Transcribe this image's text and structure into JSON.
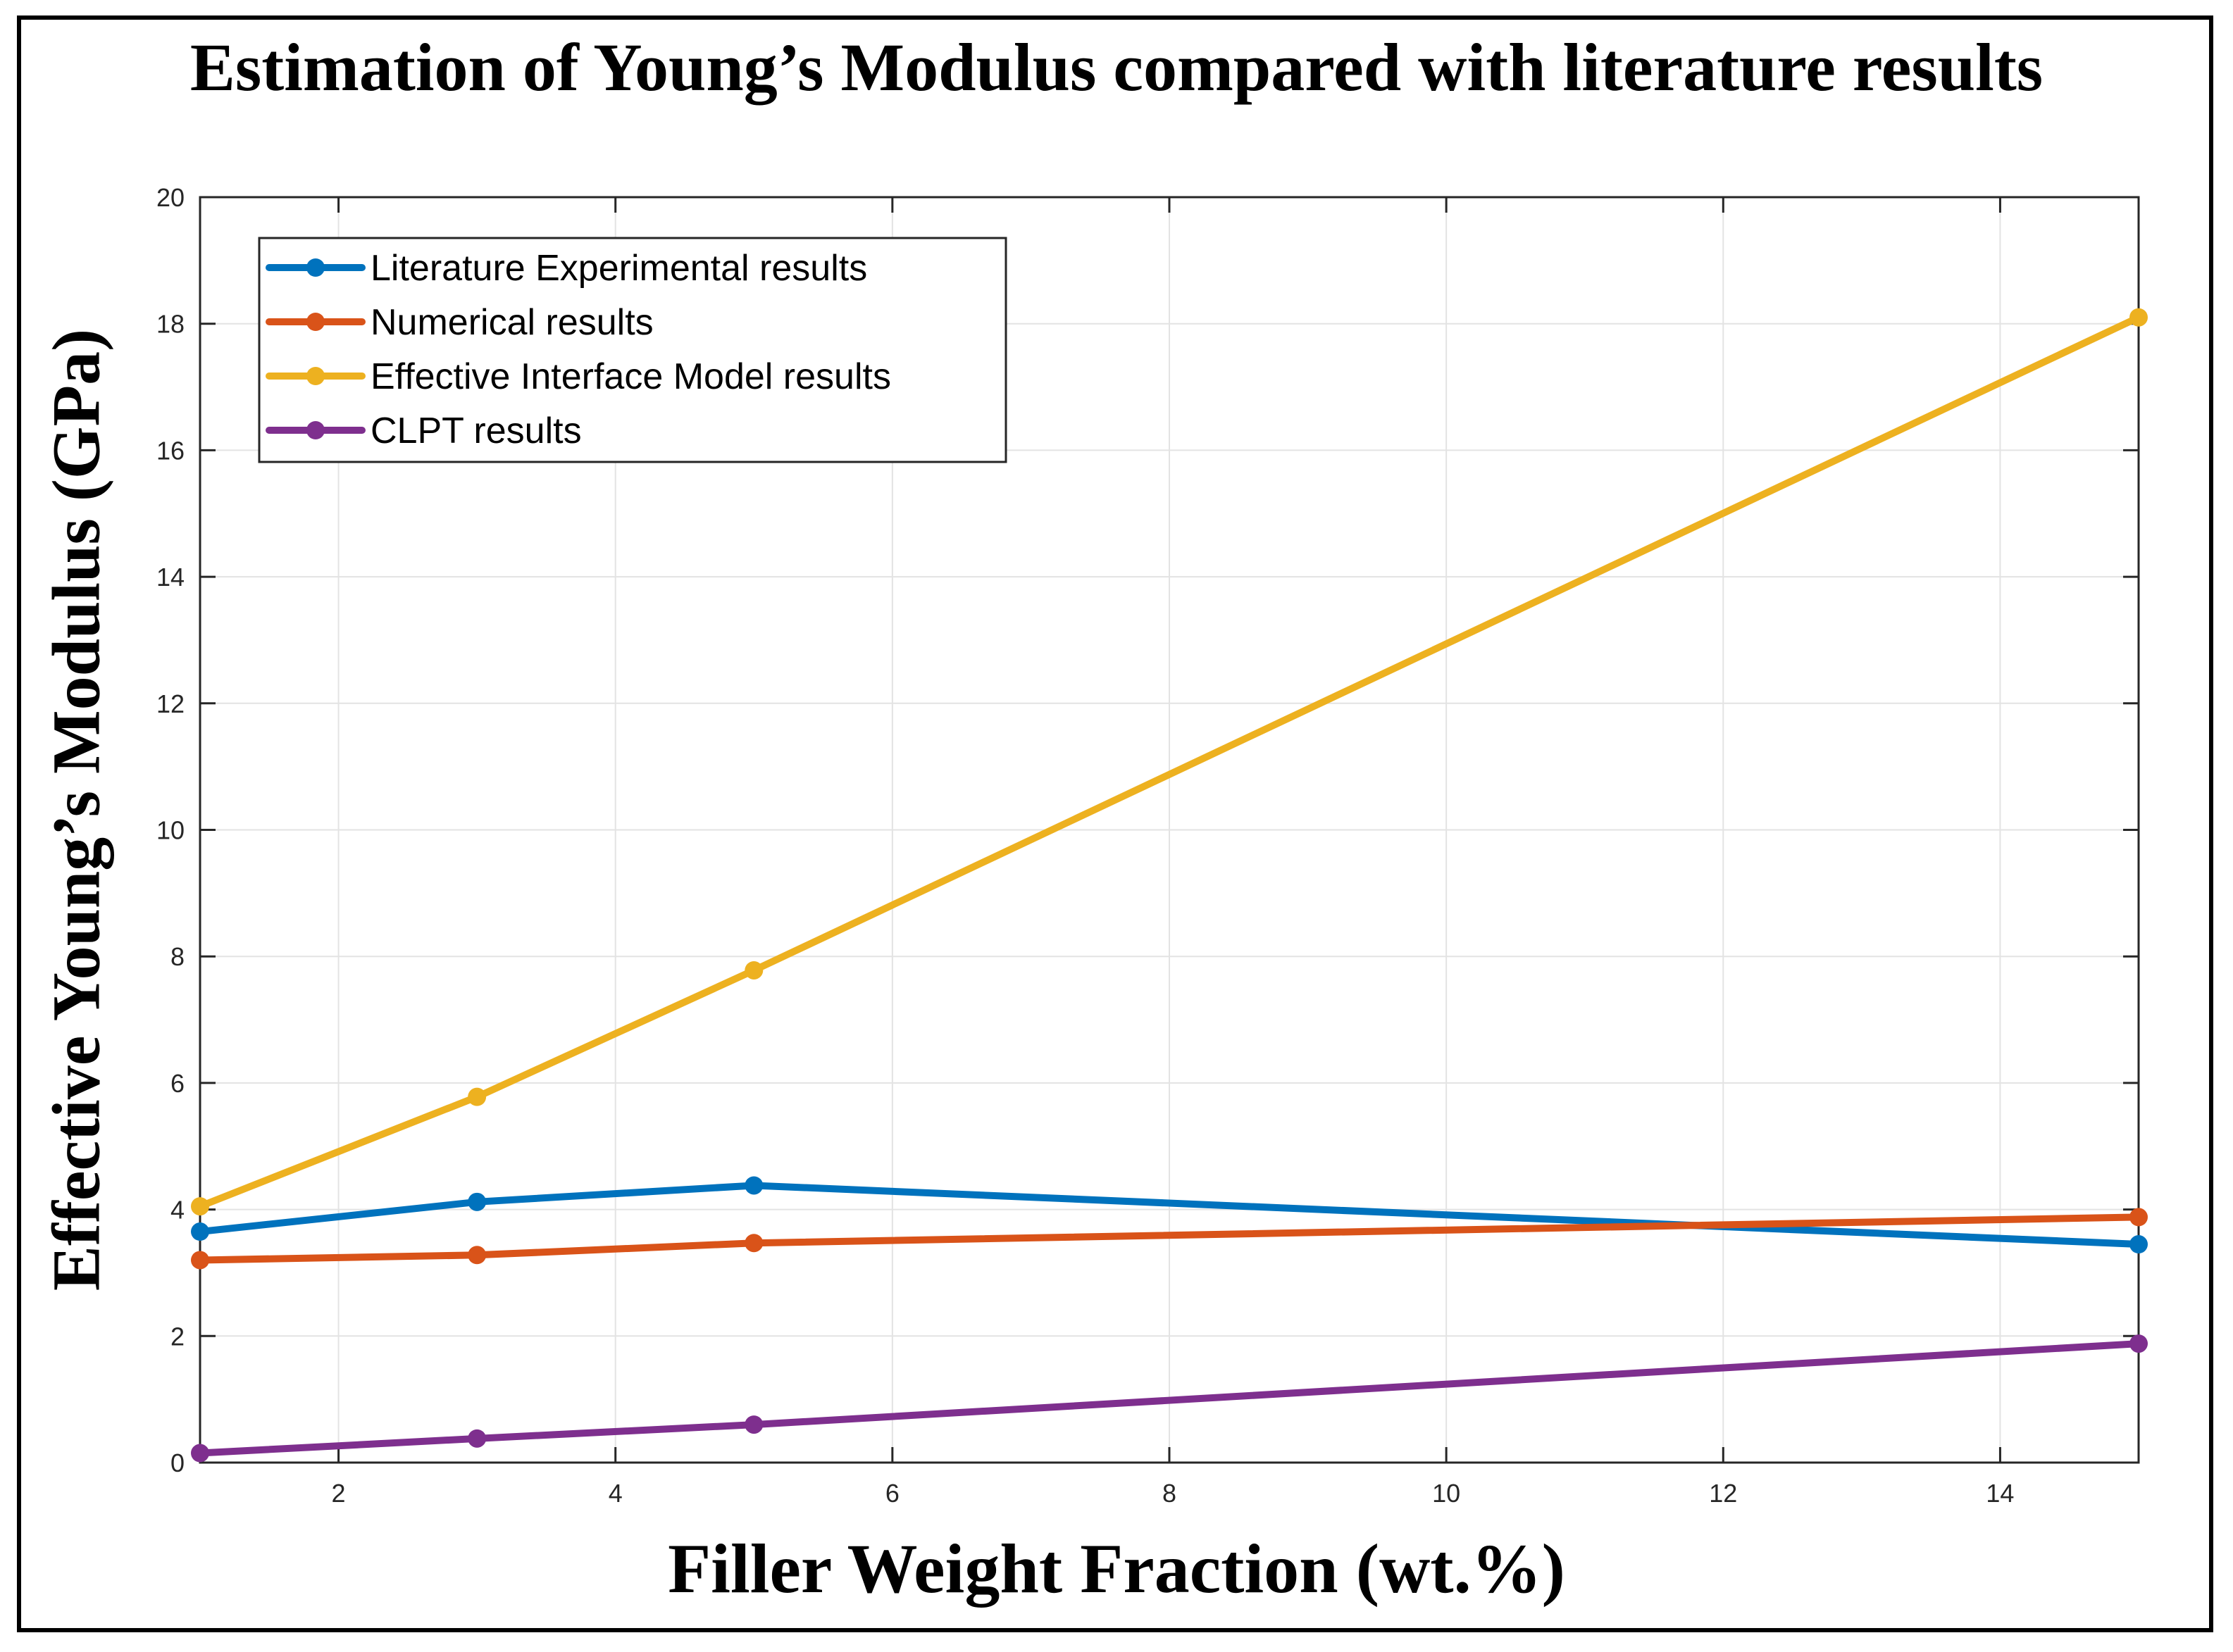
{
  "chart_data": {
    "type": "line",
    "title": "Estimation of Young’s Modulus compared with literature results",
    "xlabel": "Filler Weight Fraction (wt.%)",
    "ylabel": "Effective Young’s Modulus (GPa)",
    "xlim": [
      1,
      15
    ],
    "ylim": [
      0,
      20
    ],
    "xticks": [
      2,
      4,
      6,
      8,
      10,
      12,
      14
    ],
    "yticks": [
      0,
      2,
      4,
      6,
      8,
      10,
      12,
      14,
      16,
      18,
      20
    ],
    "grid": true,
    "legend_position": "top-left",
    "x": [
      1,
      3,
      5,
      15
    ],
    "series": [
      {
        "name": "Literature Experimental results",
        "color": "#0072BD",
        "values": [
          3.65,
          4.12,
          4.38,
          3.45
        ]
      },
      {
        "name": "Numerical results",
        "color": "#D95319",
        "values": [
          3.2,
          3.28,
          3.47,
          3.88
        ]
      },
      {
        "name": "Effective Interface Model results",
        "color": "#EDB120",
        "values": [
          4.05,
          5.78,
          7.78,
          18.1
        ]
      },
      {
        "name": "CLPT results",
        "color": "#7E2F8E",
        "values": [
          0.15,
          0.38,
          0.6,
          1.88
        ]
      }
    ]
  }
}
